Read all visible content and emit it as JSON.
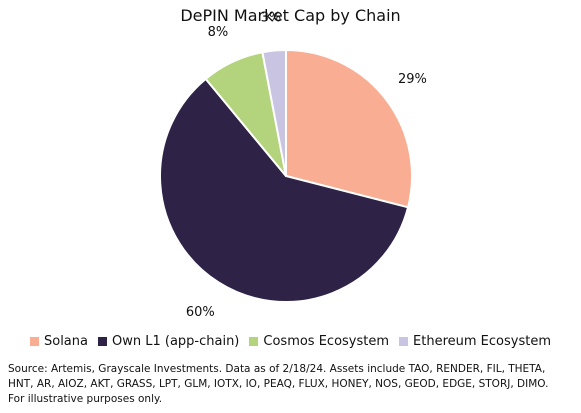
{
  "chart_data": {
    "type": "pie",
    "title": "DePIN Market Cap by Chain",
    "slices": [
      {
        "name": "Solana",
        "value": 29,
        "label": "29%",
        "color": "#f9ae93"
      },
      {
        "name": "Own L1 (app-chain)",
        "value": 60,
        "label": "60%",
        "color": "#2e2346"
      },
      {
        "name": "Cosmos Ecosystem",
        "value": 8,
        "label": "8%",
        "color": "#b3d47c"
      },
      {
        "name": "Ethereum Ecosystem",
        "value": 3,
        "label": "3%",
        "color": "#c9c4e2"
      }
    ],
    "legend_position": "bottom",
    "start": "12 o'clock",
    "direction": "clockwise"
  },
  "source_lines": [
    "Source: Artemis, Grayscale Investments. Data as of 2/18/24. Assets include TAO, RENDER, FIL, THETA,",
    "HNT, AR, AIOZ, AKT, GRASS, LPT, GLM, IOTX, IO, PEAQ, FLUX, HONEY, NOS, GEOD, EDGE, STORJ, DIMO.",
    "For illustrative purposes only."
  ]
}
